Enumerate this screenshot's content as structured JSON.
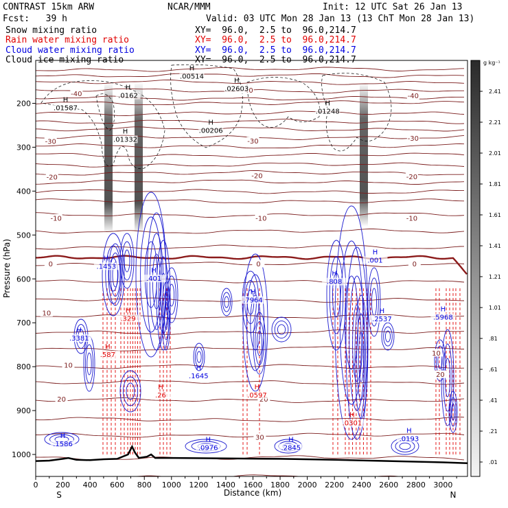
{
  "header": {
    "model": "CONTRAST 15km ARW",
    "fcst": "Fcst:   39 h",
    "org": "NCAR/MMM",
    "init": "Init: 12 UTC Sat 26 Jan 13",
    "valid": "Valid: 03 UTC Mon 28 Jan 13 (13 ChT Mon 28 Jan 13)"
  },
  "fields": [
    {
      "name": "Snow mixing ratio",
      "xy": "XY=  96.0,  2.5 to  96.0,214.7",
      "color": "#000000"
    },
    {
      "name": "Rain water mixing ratio",
      "xy": "XY=  96.0,  2.5 to  96.0,214.7",
      "color": "#e00000"
    },
    {
      "name": "Cloud water mixing ratio",
      "xy": "XY=  96.0,  2.5 to  96.0,214.7",
      "color": "#0000e0"
    },
    {
      "name": "Cloud ice mixing ratio",
      "xy": "XY=  96.0,  2.5 to  96.0,214.7",
      "color": "#000000"
    }
  ],
  "colorbar": {
    "unit": "g kg⁻¹",
    "labels": [
      "2.41",
      "2.21",
      "2.01",
      "1.81",
      "1.61",
      "1.41",
      "1.21",
      "1.01",
      ".81",
      ".61",
      ".41",
      ".21",
      ".01"
    ]
  },
  "chart_data": {
    "type": "contour",
    "xlabel": "Distance (km)",
    "ylabel": "Pressure (hPa)",
    "xlim": [
      0,
      3180
    ],
    "ylim": [
      1030,
      100
    ],
    "x_ticks": [
      0,
      200,
      400,
      600,
      800,
      1000,
      1200,
      1400,
      1600,
      1800,
      2000,
      2200,
      2400,
      2600,
      2800,
      3000
    ],
    "y_ticks": [
      200,
      300,
      400,
      500,
      600,
      700,
      800,
      900,
      1000
    ],
    "x_end_labels": {
      "left": "S",
      "right": "N"
    },
    "temperature_labels": [
      {
        "x": 1560,
        "p": 170,
        "t": "-40"
      },
      {
        "x": 300,
        "p": 178,
        "t": "-40"
      },
      {
        "x": 2780,
        "p": 183,
        "t": "-40"
      },
      {
        "x": 110,
        "p": 287,
        "t": "-30"
      },
      {
        "x": 1600,
        "p": 286,
        "t": "-30"
      },
      {
        "x": 2780,
        "p": 280,
        "t": "-30"
      },
      {
        "x": 120,
        "p": 368,
        "t": "-20"
      },
      {
        "x": 1630,
        "p": 365,
        "t": "-20"
      },
      {
        "x": 2770,
        "p": 367,
        "t": "-20"
      },
      {
        "x": 150,
        "p": 462,
        "t": "-10"
      },
      {
        "x": 1660,
        "p": 462,
        "t": "-10"
      },
      {
        "x": 2770,
        "p": 462,
        "t": "-10"
      },
      {
        "x": 110,
        "p": 566,
        "t": "0"
      },
      {
        "x": 1640,
        "p": 566,
        "t": "0"
      },
      {
        "x": 2790,
        "p": 566,
        "t": "0"
      },
      {
        "x": 80,
        "p": 678,
        "t": "10"
      },
      {
        "x": 240,
        "p": 797,
        "t": "10"
      },
      {
        "x": 2950,
        "p": 769,
        "t": "10"
      },
      {
        "x": 190,
        "p": 874,
        "t": "20"
      },
      {
        "x": 1680,
        "p": 874,
        "t": "20"
      },
      {
        "x": 2980,
        "p": 818,
        "t": "20"
      },
      {
        "x": 1650,
        "p": 961,
        "t": "30"
      }
    ],
    "extrema_labels": [
      {
        "x": 1150,
        "p": 142,
        "val": ".00514",
        "color": "#000000"
      },
      {
        "x": 1480,
        "p": 170,
        "val": ".02603",
        "color": "#000000"
      },
      {
        "x": 220,
        "p": 214,
        "val": ".01587",
        "color": "#000000"
      },
      {
        "x": 680,
        "p": 186,
        "val": ".0162",
        "color": "#000000"
      },
      {
        "x": 2150,
        "p": 222,
        "val": ".01248",
        "color": "#000000"
      },
      {
        "x": 1290,
        "p": 266,
        "val": ".00206",
        "color": "#000000"
      },
      {
        "x": 660,
        "p": 286,
        "val": ".01332",
        "color": "#000000"
      },
      {
        "x": 2500,
        "p": 561,
        "val": ".001",
        "color": "#0000e0"
      },
      {
        "x": 520,
        "p": 575,
        "val": ".1453",
        "color": "#0000e0"
      },
      {
        "x": 870,
        "p": 603,
        "val": ".401",
        "color": "#0000e0"
      },
      {
        "x": 2200,
        "p": 610,
        "val": ".808",
        "color": "#0000e0"
      },
      {
        "x": 1600,
        "p": 652,
        "val": ".7964",
        "color": "#0000e0"
      },
      {
        "x": 2550,
        "p": 695,
        "val": ".2537",
        "color": "#0000e0"
      },
      {
        "x": 320,
        "p": 739,
        "val": ".3381",
        "color": "#0000e0"
      },
      {
        "x": 3000,
        "p": 691,
        "val": ".5968",
        "color": "#0000e0"
      },
      {
        "x": 1200,
        "p": 825,
        "val": ".1645",
        "color": "#0000e0"
      },
      {
        "x": 200,
        "p": 980,
        "val": ".1586",
        "color": "#0000e0"
      },
      {
        "x": 1270,
        "p": 988,
        "val": ".0976",
        "color": "#0000e0"
      },
      {
        "x": 1880,
        "p": 988,
        "val": ".2845",
        "color": "#0000e0"
      },
      {
        "x": 2750,
        "p": 968,
        "val": ".0193",
        "color": "#0000e0"
      },
      {
        "x": 530,
        "p": 776,
        "val": ".587",
        "color": "#e00000"
      },
      {
        "x": 680,
        "p": 694,
        "val": ".329",
        "color": "#e00000"
      },
      {
        "x": 920,
        "p": 869,
        "val": ".26",
        "color": "#e00000"
      },
      {
        "x": 1630,
        "p": 869,
        "val": ".0597",
        "color": "#e00000"
      },
      {
        "x": 2330,
        "p": 932,
        "val": ".0301",
        "color": "#e00000"
      }
    ]
  }
}
